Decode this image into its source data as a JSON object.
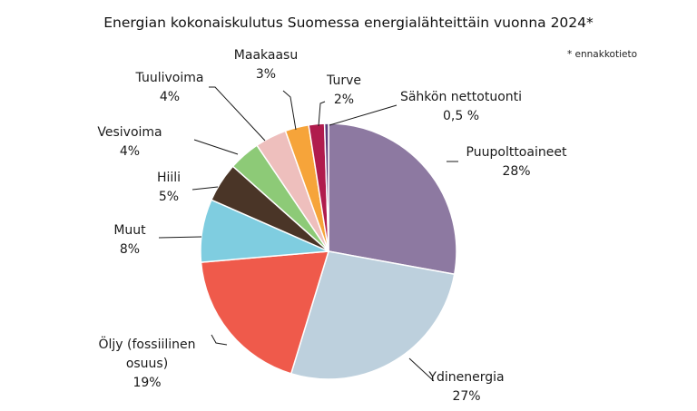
{
  "chart_data": {
    "type": "pie",
    "title": "Energian kokonaiskulutus Suomessa energialähteittäin vuonna 2024*",
    "note": "* ennakkotieto",
    "slices": [
      {
        "name": "Puupolttoaineet",
        "value": 28,
        "value_label": "28%",
        "color": "#8d79a1"
      },
      {
        "name": "Ydinenergia",
        "value": 27,
        "value_label": "27%",
        "color": "#bdd0dd"
      },
      {
        "name": "Öljy (fossiilinen osuus)",
        "value": 19,
        "value_label": "19%",
        "color": "#ef5a4b"
      },
      {
        "name": "Muut",
        "value": 8,
        "value_label": "8%",
        "color": "#7fcde0"
      },
      {
        "name": "Hiili",
        "value": 5,
        "value_label": "5%",
        "color": "#4a3527"
      },
      {
        "name": "Vesivoima",
        "value": 4,
        "value_label": "4%",
        "color": "#8dca77"
      },
      {
        "name": "Tuulivoima",
        "value": 4,
        "value_label": "4%",
        "color": "#eebfbd"
      },
      {
        "name": "Maakaasu",
        "value": 3,
        "value_label": "3%",
        "color": "#f6a43a"
      },
      {
        "name": "Turve",
        "value": 2,
        "value_label": "2%",
        "color": "#b01c4d"
      },
      {
        "name": "Sähkön nettotuonti",
        "value": 0.5,
        "value_label": "0,5 %",
        "color": "#5c3c7a"
      }
    ],
    "start_angle_deg": 0,
    "direction": "clockwise",
    "legend": "none"
  }
}
